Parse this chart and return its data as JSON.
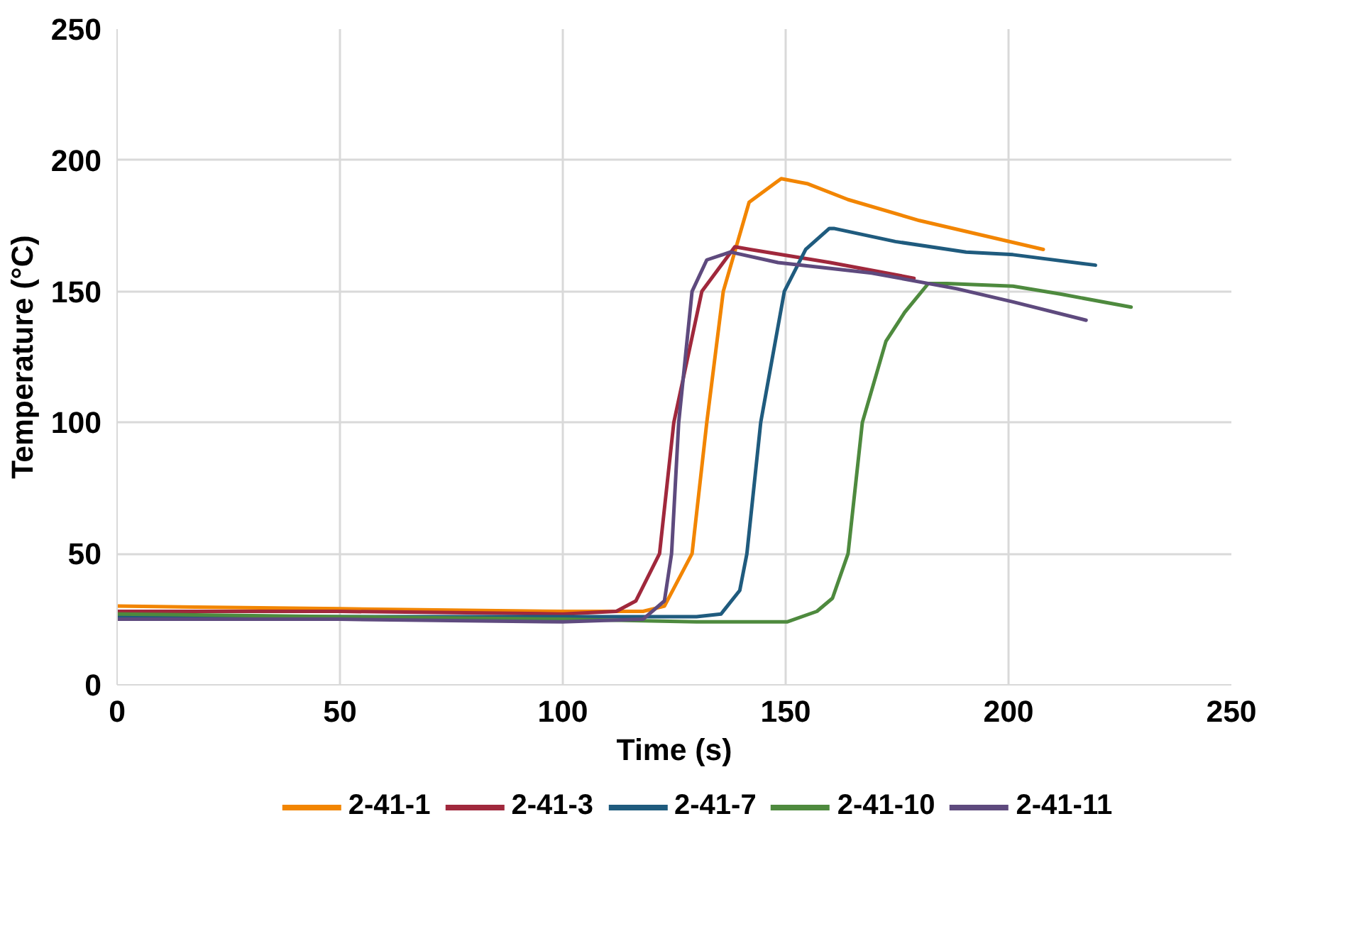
{
  "chart_data": {
    "type": "line",
    "xlabel": "Time (s)",
    "ylabel": "Temperature (°C)",
    "xlim": [
      0,
      250
    ],
    "ylim": [
      0,
      250
    ],
    "xticks": [
      0,
      50,
      100,
      150,
      200,
      250
    ],
    "yticks": [
      0,
      50,
      100,
      150,
      200,
      250
    ],
    "grid": true,
    "legend": "bottom",
    "marker": "none",
    "line_style": "solid",
    "series": [
      {
        "name": "2-41-1",
        "color": "#f28500",
        "x": [
          0,
          50,
          100,
          118,
          122.8,
          129,
          132.3,
          136,
          141.8,
          149,
          155,
          164,
          180,
          192.6,
          207.8
        ],
        "values": [
          30,
          29,
          28,
          28,
          30,
          50,
          100,
          150,
          184,
          193,
          191,
          185,
          177,
          172,
          166
        ]
      },
      {
        "name": "2-41-3",
        "color": "#a0283c",
        "x": [
          0,
          50,
          100,
          112,
          116.4,
          121.7,
          124.9,
          131.2,
          138.6,
          142,
          160,
          178.8
        ],
        "values": [
          28,
          28,
          27,
          28,
          32,
          50,
          100,
          150,
          167,
          166,
          161,
          155
        ]
      },
      {
        "name": "2-41-7",
        "color": "#1f5b7e",
        "x": [
          0,
          50,
          100,
          130,
          135.5,
          139.7,
          141.3,
          144.4,
          149.7,
          154.5,
          159.8,
          160.8,
          174.6,
          190.5,
          201,
          219.5
        ],
        "values": [
          26,
          26,
          26,
          26,
          27,
          36,
          50,
          100,
          150,
          166,
          174,
          174,
          169,
          165,
          164,
          160
        ]
      },
      {
        "name": "2-41-10",
        "color": "#4e8a3e",
        "x": [
          0,
          50,
          100,
          130,
          150.3,
          157,
          160.5,
          164,
          167.2,
          172.5,
          176.7,
          182,
          186.2,
          201,
          211.6,
          227.5
        ],
        "values": [
          27,
          26,
          25,
          24,
          24,
          28,
          33,
          50,
          100,
          131,
          142,
          153,
          153,
          152,
          149,
          144
        ]
      },
      {
        "name": "2-41-11",
        "color": "#5e4a7e",
        "x": [
          0,
          50,
          100,
          118,
          122.8,
          124.4,
          126,
          129,
          132.3,
          137.6,
          148.3,
          169.3,
          188.4,
          201,
          217.4
        ],
        "values": [
          25,
          25,
          24,
          25,
          32,
          50,
          100,
          150,
          162,
          165,
          161,
          157,
          151,
          146,
          139
        ]
      }
    ]
  }
}
